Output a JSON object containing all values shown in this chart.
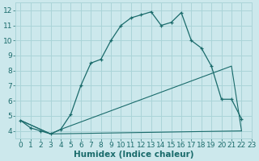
{
  "xlabel": "Humidex (Indice chaleur)",
  "xlim": [
    -0.5,
    23
  ],
  "ylim": [
    3.5,
    12.5
  ],
  "bg_color": "#cce8ec",
  "grid_color": "#aad4d8",
  "line_color": "#1a6b6b",
  "line1_x": [
    0,
    1,
    2,
    3,
    4,
    5,
    6,
    7,
    8,
    9,
    10,
    11,
    12,
    13,
    14,
    15,
    16,
    17,
    18,
    19,
    20,
    21,
    22
  ],
  "line1_y": [
    4.7,
    4.2,
    4.0,
    3.8,
    4.1,
    5.1,
    7.0,
    8.5,
    8.75,
    10.0,
    11.0,
    11.5,
    11.7,
    11.9,
    11.0,
    11.2,
    11.85,
    10.0,
    9.5,
    8.3,
    6.1,
    6.1,
    4.8
  ],
  "line2_x": [
    0,
    3,
    4,
    21,
    22
  ],
  "line2_y": [
    4.7,
    3.8,
    4.1,
    8.3,
    4.0
  ],
  "line3_x": [
    0,
    3,
    22
  ],
  "line3_y": [
    4.7,
    3.8,
    4.0
  ],
  "xticks": [
    0,
    1,
    2,
    3,
    4,
    5,
    6,
    7,
    8,
    9,
    10,
    11,
    12,
    13,
    14,
    15,
    16,
    17,
    18,
    19,
    20,
    21,
    22,
    23
  ],
  "xtick_labels": [
    "0",
    "1",
    "2",
    "3",
    "4",
    "5",
    "6",
    "7",
    "8",
    "9",
    "10",
    "11",
    "12",
    "13",
    "14",
    "15",
    "16",
    "17",
    "18",
    "19",
    "20",
    "21",
    "22",
    "23"
  ],
  "yticks": [
    4,
    5,
    6,
    7,
    8,
    9,
    10,
    11,
    12
  ],
  "ytick_labels": [
    "4",
    "5",
    "6",
    "7",
    "8",
    "9",
    "10",
    "11",
    "12"
  ],
  "tick_fontsize": 6.5,
  "xlabel_fontsize": 7.5
}
